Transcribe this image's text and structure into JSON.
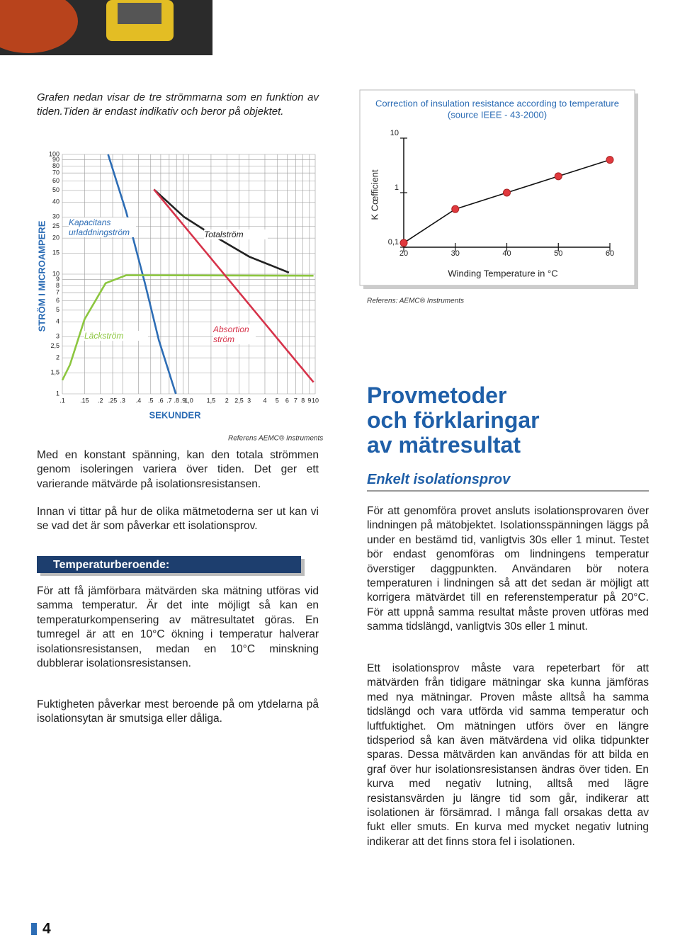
{
  "chart_data": [
    {
      "type": "line",
      "y_label": "STRÖM I MICROAMPERE",
      "x_label": "SEKUNDER",
      "source": "Referens AEMC® Instruments",
      "log_x": true,
      "log_y": true,
      "grid": true,
      "xlim": [
        0.1,
        10
      ],
      "ylim": [
        1,
        100
      ],
      "xticks": [
        {
          "value": 0.1,
          "label": ".1"
        },
        {
          "value": 0.15,
          "label": ".15"
        },
        {
          "value": 0.2,
          "label": ".2"
        },
        {
          "value": 0.25,
          "label": ".25"
        },
        {
          "value": 0.3,
          "label": ".3"
        },
        {
          "value": 0.4,
          "label": ".4"
        },
        {
          "value": 0.5,
          "label": ".5"
        },
        {
          "value": 0.6,
          "label": ".6"
        },
        {
          "value": 0.7,
          "label": ".7"
        },
        {
          "value": 0.8,
          "label": ".8"
        },
        {
          "value": 0.9,
          "label": ".9"
        },
        {
          "value": 1,
          "label": "1,0"
        },
        {
          "value": 1.5,
          "label": "1,5"
        },
        2,
        {
          "value": 2.5,
          "label": "2,5"
        },
        3,
        4,
        5,
        6,
        7,
        8,
        9,
        10
      ],
      "yticks": [
        1,
        {
          "value": 1.5,
          "label": "1,5"
        },
        2,
        {
          "value": 2.5,
          "label": "2,5"
        },
        3,
        4,
        5,
        6,
        7,
        8,
        9,
        10,
        15,
        20,
        25,
        30,
        40,
        50,
        60,
        70,
        80,
        90,
        100
      ],
      "series": [
        {
          "name": "Kapacitans urladdningström",
          "color": "#2d6db5",
          "x": [
            0.23,
            0.32,
            0.45,
            0.58,
            0.79
          ],
          "values": [
            100,
            33,
            8.4,
            2.8,
            1
          ]
        },
        {
          "name": "Läckström",
          "color": "#8cc63f",
          "x": [
            0.1,
            0.115,
            0.15,
            0.22,
            0.32,
            9.7
          ],
          "values": [
            1.3,
            1.75,
            4.2,
            8.4,
            9.8,
            9.7
          ]
        },
        {
          "name": "Totalström",
          "color": "#222222",
          "x": [
            0.53,
            0.92,
            1.56,
            3.0,
            6.2
          ],
          "values": [
            51,
            30,
            21,
            14,
            10.3
          ]
        },
        {
          "name": "Absortion ström",
          "color": "#d6334a",
          "x": [
            0.53,
            9.7
          ],
          "values": [
            51,
            1.25
          ]
        }
      ]
    },
    {
      "type": "line",
      "title": [
        "Correction of insulation resistance according to temperature",
        "(source IEEE - 43-2000)"
      ],
      "y_label": "K Cœfficient",
      "x_label": "Winding Temperature in °C",
      "source": "Referens: AEMC® Instruments",
      "log_y": true,
      "markers": true,
      "color": "#e0393e",
      "x": [
        20,
        30,
        40,
        50,
        60
      ],
      "values": [
        0.12,
        0.5,
        1,
        2,
        4
      ],
      "xlim": [
        20,
        60
      ],
      "ylim": [
        0.1,
        10
      ],
      "xticks": [
        20,
        30,
        40,
        50,
        60
      ],
      "yticks": [
        {
          "value": 0.1,
          "label": "0,1"
        },
        1,
        10
      ]
    }
  ],
  "document": {
    "intro": "Grafen nedan visar de tre strömmarna som en funktion av tiden.Tiden är endast indikativ och beror på objektet.",
    "left_paragraphs": [
      "Med en konstant spänning, kan den totala strömmen genom isoleringen variera över tiden. Det ger ett varierande mätvärde på isolationsresistansen.",
      "Innan vi tittar på hur de olika mätmetoderna ser ut kan vi se vad det är som påverkar ett isolationsprov."
    ],
    "banner": "Temperaturberoende:",
    "temperature_paragraphs": [
      "För att få jämförbara mätvärden ska mätning utföras vid samma temperatur. Är det inte möjligt så kan en temperaturkompensering av mätresultatet göras. En tumregel är att en 10°C ökning i temperatur halverar isolationsresistansen, medan en 10°C minskning dubblerar isolationsresistansen.",
      "Fuktigheten påverkar mest beroende på om ytdelarna på isolationsytan är smutsiga eller dåliga."
    ],
    "heading": [
      "Provmetoder",
      "och förklaringar",
      "av mätresultat"
    ],
    "subheading": "Enkelt isolationsprov",
    "right_paragraphs": [
      "För att genomföra provet ansluts isolationsprovaren över lindningen på mätobjektet. Isolationsspänningen läggs på under en bestämd tid, vanligtvis 30s eller 1 minut. Testet bör endast genomföras om lindningens temperatur överstiger daggpunkten. Användaren bör notera temperaturen i lindningen så att det sedan är möjligt att korrigera mätvärdet till en referenstemperatur på 20°C. För att uppnå samma resultat måste proven utföras med samma tidslängd, vanligtvis 30s eller 1 minut.",
      "Ett isolationsprov måste vara repeterbart för att mätvärden från tidigare mätningar ska kunna jämföras med nya mätningar. Proven måste alltså ha samma tidslängd och vara utförda vid samma temperatur och luftfuktighet. Om mätningen utförs över en längre tidsperiod så kan även mätvärdena vid olika tidpunkter sparas. Dessa mätvärden kan användas för att bilda en graf över hur isolationsresistansen ändras över tiden. En kurva med negativ lutning, alltså med lägre resistansvärden ju längre tid som går, indikerar att isolationen är försämrad. I många fall orsakas detta av fukt eller smuts. En kurva med mycket negativ lutning indikerar att det finns stora fel i isolationen."
    ],
    "page_number": 4
  }
}
